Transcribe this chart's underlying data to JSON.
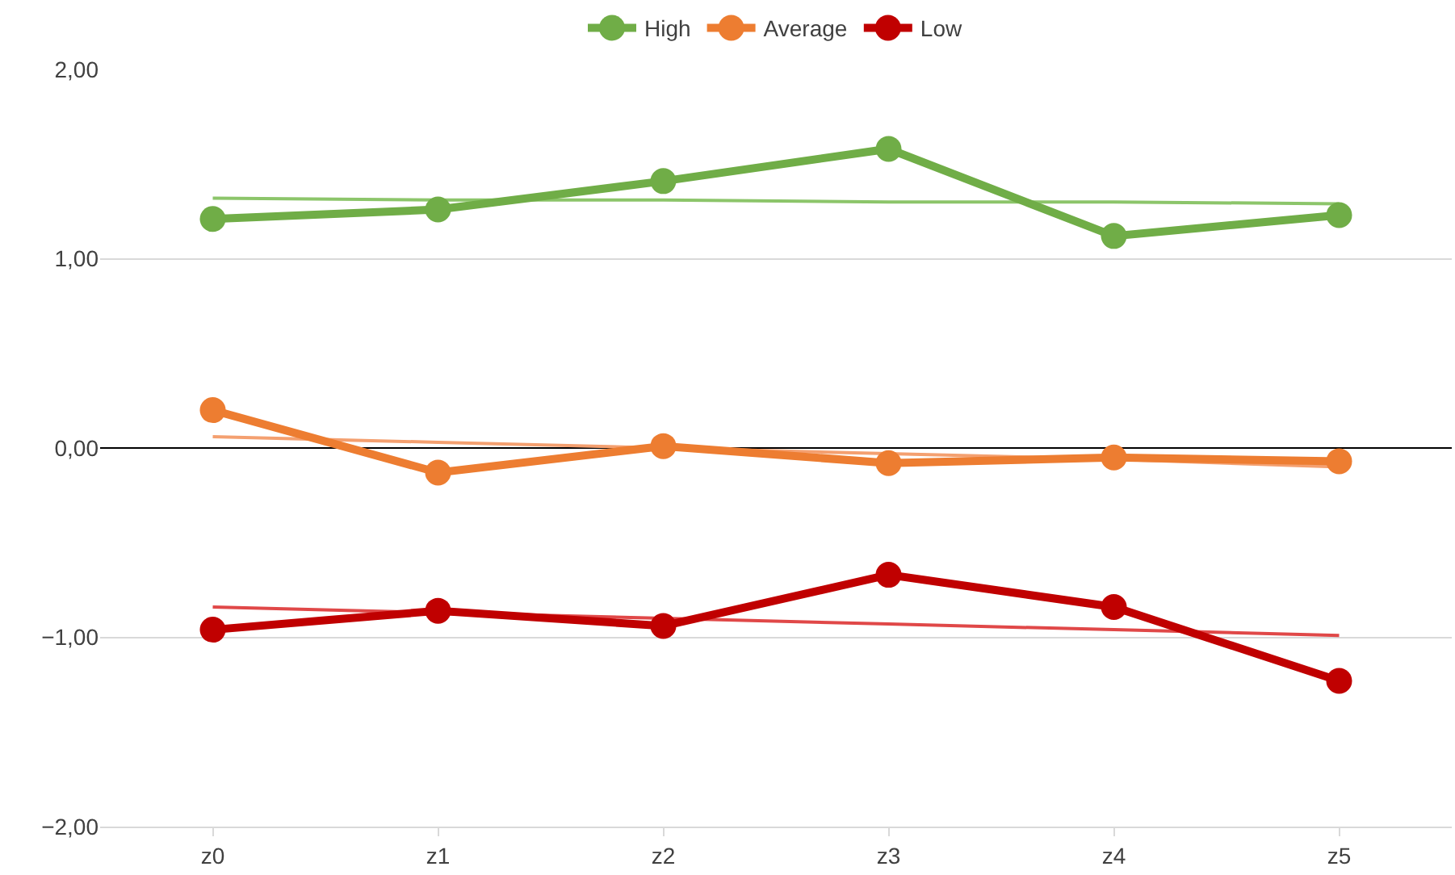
{
  "chart_data": {
    "type": "line",
    "categories": [
      "z0",
      "z1",
      "z2",
      "z3",
      "z4",
      "z5"
    ],
    "ylim": [
      -2,
      2
    ],
    "yticks": [
      {
        "value": -2,
        "label": "−2,00"
      },
      {
        "value": -1,
        "label": "−1,00"
      },
      {
        "value": 0,
        "label": "0,00"
      },
      {
        "value": 1,
        "label": "1,00"
      },
      {
        "value": 2,
        "label": "2,00"
      }
    ],
    "grid": "y",
    "legend": "top",
    "marker": "circle",
    "line_style": "solid",
    "series": [
      {
        "name": "High",
        "color": "#70ad47",
        "values": [
          1.21,
          1.26,
          1.41,
          1.58,
          1.12,
          1.23
        ]
      },
      {
        "name": "Average",
        "color": "#ed7d31",
        "values": [
          0.2,
          -0.13,
          0.01,
          -0.08,
          -0.05,
          -0.07
        ]
      },
      {
        "name": "Low",
        "color": "#c00000",
        "values": [
          -0.96,
          -0.86,
          -0.94,
          -0.67,
          -0.84,
          -1.23
        ]
      },
      {
        "color": "#8cc56a",
        "values": [
          1.32,
          1.31,
          1.31,
          1.3,
          1.3,
          1.29
        ],
        "marker": "none"
      },
      {
        "color": "#f4a070",
        "values": [
          0.06,
          0.03,
          0.0,
          -0.03,
          -0.06,
          -0.1
        ],
        "marker": "none"
      },
      {
        "color": "#e04848",
        "values": [
          -0.84,
          -0.87,
          -0.9,
          -0.93,
          -0.96,
          -0.99
        ],
        "marker": "none"
      }
    ]
  }
}
